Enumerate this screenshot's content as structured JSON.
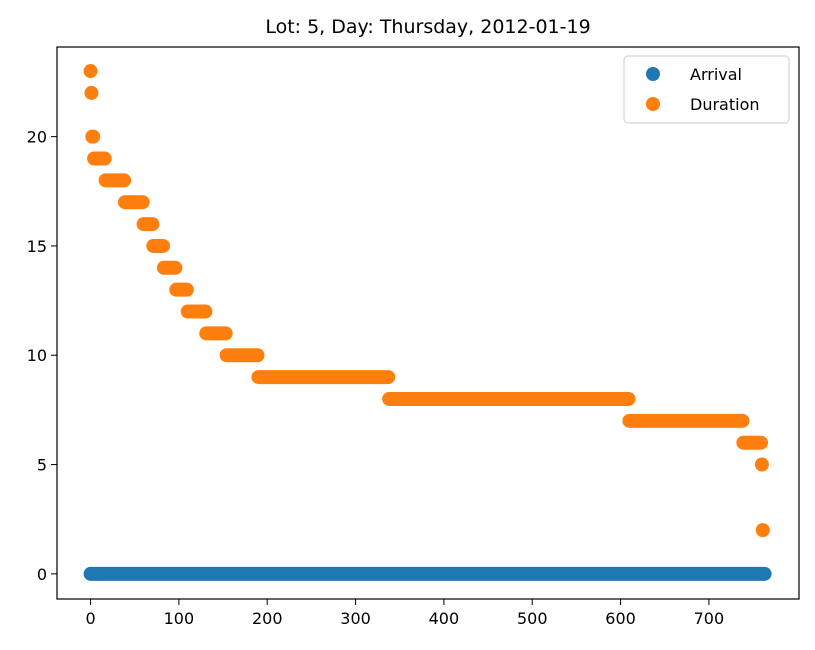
{
  "chart_data": {
    "type": "scatter",
    "title": "Lot: 5, Day: Thursday, 2012-01-19",
    "xlabel": "",
    "ylabel": "",
    "xlim": [
      -38,
      802
    ],
    "ylim": [
      -1.15,
      24.1
    ],
    "x_ticks": [
      0,
      100,
      200,
      300,
      400,
      500,
      600,
      700
    ],
    "y_ticks": [
      0,
      5,
      10,
      15,
      20
    ],
    "grid": false,
    "legend_position": "top-right",
    "legend": [
      "Arrival",
      "Duration"
    ],
    "series": [
      {
        "name": "Arrival",
        "color": "#1f77b4",
        "runs": [
          {
            "x_start": 0,
            "x_end": 763,
            "y": 0
          }
        ]
      },
      {
        "name": "Duration",
        "color": "#ff7f0e",
        "runs": [
          {
            "x_start": 0,
            "x_end": 0,
            "y": 23
          },
          {
            "x_start": 1,
            "x_end": 1,
            "y": 22
          },
          {
            "x_start": 2,
            "x_end": 3,
            "y": 20
          },
          {
            "x_start": 4,
            "x_end": 16,
            "y": 19
          },
          {
            "x_start": 17,
            "x_end": 38,
            "y": 18
          },
          {
            "x_start": 39,
            "x_end": 59,
            "y": 17
          },
          {
            "x_start": 60,
            "x_end": 70,
            "y": 16
          },
          {
            "x_start": 71,
            "x_end": 82,
            "y": 15
          },
          {
            "x_start": 83,
            "x_end": 96,
            "y": 14
          },
          {
            "x_start": 97,
            "x_end": 109,
            "y": 13
          },
          {
            "x_start": 110,
            "x_end": 130,
            "y": 12
          },
          {
            "x_start": 131,
            "x_end": 153,
            "y": 11
          },
          {
            "x_start": 154,
            "x_end": 189,
            "y": 10
          },
          {
            "x_start": 190,
            "x_end": 337,
            "y": 9
          },
          {
            "x_start": 338,
            "x_end": 609,
            "y": 8
          },
          {
            "x_start": 610,
            "x_end": 738,
            "y": 7
          },
          {
            "x_start": 739,
            "x_end": 759,
            "y": 6
          },
          {
            "x_start": 760,
            "x_end": 760,
            "y": 5
          },
          {
            "x_start": 761,
            "x_end": 761,
            "y": 2
          }
        ]
      }
    ]
  }
}
